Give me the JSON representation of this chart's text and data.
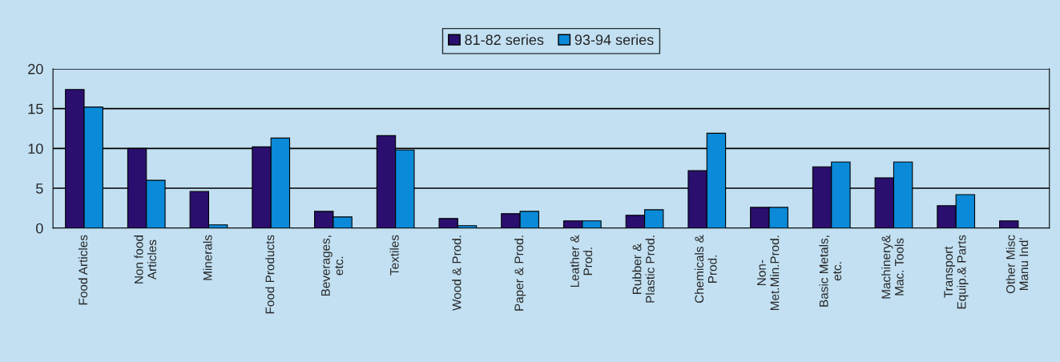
{
  "chart_data": {
    "type": "bar",
    "categories": [
      "Food Articles",
      "Non food\nArticles",
      "Minerals",
      "Food Products",
      "Beverages,\netc.",
      "Textiles",
      "Wood & Prod.",
      "Paper & Prod.",
      "Leather &\nProd.",
      "Rubber &\nPlastic Prod.",
      "Chemicals &\nProd.",
      "Non-\nMet.Min.Prod.",
      "Basic Metals,\netc.",
      "Machinery&\nMac. Tools",
      "Transport\nEquip.& Parts",
      "Other Misc\nManu Ind'"
    ],
    "series": [
      {
        "name": "81-82 series",
        "color": "#2a0f6e",
        "values": [
          17.4,
          10,
          4.6,
          10.2,
          2.1,
          11.6,
          1.2,
          1.8,
          0.9,
          1.6,
          7.2,
          2.6,
          7.7,
          6.3,
          2.8,
          0.9
        ]
      },
      {
        "name": "93-94 series",
        "color": "#0a8ad8",
        "values": [
          15.2,
          6,
          0.4,
          11.3,
          1.4,
          9.8,
          0.3,
          2.1,
          0.9,
          2.3,
          11.9,
          2.6,
          8.3,
          8.3,
          4.2,
          null
        ]
      }
    ],
    "ylim": [
      0,
      20
    ],
    "yticks": [
      0,
      5,
      10,
      15,
      20
    ],
    "grid": "y",
    "legend": "top"
  }
}
